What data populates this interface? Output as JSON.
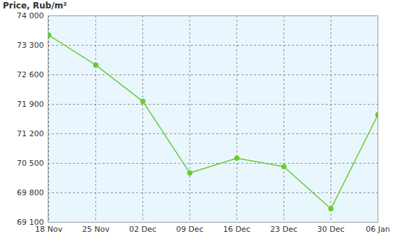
{
  "chart_data": {
    "type": "line",
    "title": "Price, Rub/m²",
    "categories": [
      "18 Nov",
      "25 Nov",
      "02 Dec",
      "09 Dec",
      "16 Dec",
      "23 Dec",
      "30 Dec",
      "06 Jan"
    ],
    "values": [
      73540,
      72830,
      71970,
      70270,
      70620,
      70420,
      69420,
      71650
    ],
    "color": "#66cc33",
    "marker": "circle",
    "ylim": [
      69100,
      74000
    ],
    "yticks": [
      {
        "value": 69100,
        "label": "69 100"
      },
      {
        "value": 69800,
        "label": "69 800"
      },
      {
        "value": 70500,
        "label": "70 500"
      },
      {
        "value": 71200,
        "label": "71 200"
      },
      {
        "value": 71900,
        "label": "71 900"
      },
      {
        "value": 72600,
        "label": "72 600"
      },
      {
        "value": 73300,
        "label": "73 300"
      },
      {
        "value": 74000,
        "label": "74 000"
      }
    ],
    "grid": true
  }
}
